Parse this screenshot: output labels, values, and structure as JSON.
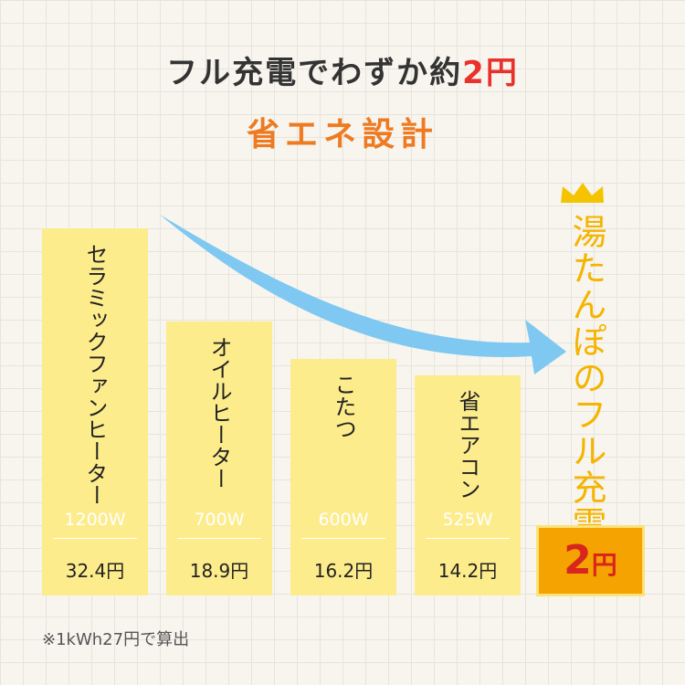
{
  "header": {
    "title": {
      "lead": "フル充電でわずか約",
      "accent": "2円"
    },
    "subtitle": "省エネ設計"
  },
  "items": [
    {
      "name": "セラミックファンヒーター",
      "watt": "1200W",
      "cost": "32.4円"
    },
    {
      "name": "オイルヒーター",
      "watt": "700W",
      "cost": "18.9円"
    },
    {
      "name": "こたつ",
      "watt": "600W",
      "cost": "16.2円"
    },
    {
      "name": "省エアコン",
      "watt": "525W",
      "cost": "14.2円"
    }
  ],
  "highlight": {
    "name": "湯たんぽのフル充電",
    "cost": {
      "number": "2",
      "unit": "円"
    }
  },
  "footnote": "※1kWh27円で算出"
}
